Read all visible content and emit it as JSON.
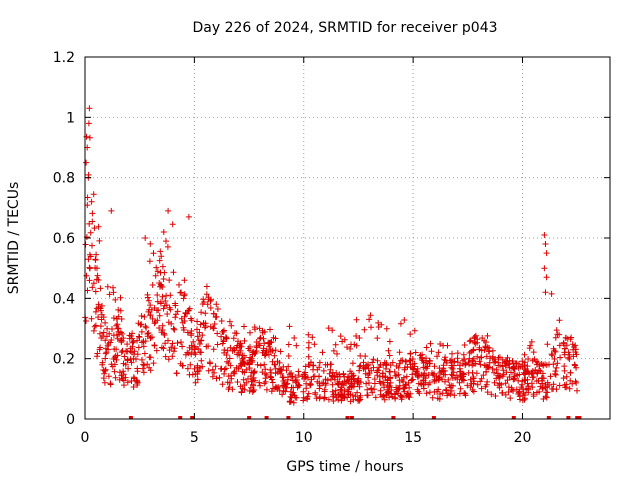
{
  "chart_data": {
    "type": "scatter",
    "title": "Day 226 of 2024, SRMTID for receiver p043",
    "xlabel": "GPS time / hours",
    "ylabel": "SRMTID / TECUs",
    "xlim": [
      0,
      24
    ],
    "ylim": [
      0,
      1.2
    ],
    "x_ticks": [
      0,
      5,
      10,
      15,
      20
    ],
    "x_tick_labels": [
      "0",
      "5",
      "10",
      "15",
      "20"
    ],
    "y_ticks": [
      0,
      0.2,
      0.4,
      0.6,
      0.8,
      1,
      1.2
    ],
    "y_tick_labels": [
      "0",
      "0.2",
      "0.4",
      "0.6",
      "0.8",
      "1",
      "1.2"
    ],
    "grid": true,
    "marker": "+",
    "series_color": "#dd0000",
    "series": [
      {
        "name": "SRMTID",
        "envelope_hours": [
          0,
          0.2,
          0.5,
          1,
          1.5,
          2,
          2.5,
          3,
          3.5,
          4,
          4.5,
          5,
          5.5,
          6,
          6.5,
          7,
          7.5,
          8,
          8.5,
          9,
          9.5,
          10,
          10.5,
          11,
          11.5,
          12,
          12.5,
          13,
          13.5,
          14,
          14.5,
          15,
          15.5,
          16,
          16.5,
          17,
          17.5,
          18,
          18.5,
          19,
          19.5,
          20,
          20.5,
          21,
          21.5,
          22,
          22.5
        ],
        "envelope_typical": [
          0.5,
          0.55,
          0.35,
          0.2,
          0.25,
          0.18,
          0.22,
          0.3,
          0.38,
          0.28,
          0.3,
          0.22,
          0.28,
          0.25,
          0.2,
          0.18,
          0.15,
          0.2,
          0.18,
          0.12,
          0.1,
          0.12,
          0.14,
          0.12,
          0.1,
          0.1,
          0.12,
          0.14,
          0.13,
          0.12,
          0.13,
          0.15,
          0.14,
          0.12,
          0.14,
          0.13,
          0.15,
          0.2,
          0.16,
          0.14,
          0.13,
          0.12,
          0.15,
          0.13,
          0.18,
          0.2,
          0.16
        ],
        "envelope_high": [
          0.9,
          1.03,
          0.7,
          0.45,
          0.45,
          0.3,
          0.32,
          0.6,
          0.55,
          0.69,
          0.62,
          0.67,
          0.45,
          0.4,
          0.35,
          0.3,
          0.32,
          0.32,
          0.3,
          0.28,
          0.35,
          0.3,
          0.3,
          0.37,
          0.3,
          0.28,
          0.35,
          0.4,
          0.32,
          0.33,
          0.36,
          0.3,
          0.25,
          0.25,
          0.25,
          0.25,
          0.27,
          0.32,
          0.28,
          0.25,
          0.22,
          0.2,
          0.32,
          0.62,
          0.35,
          0.35,
          0.22
        ],
        "zero_value_hours": [
          2.1,
          4.35,
          4.9,
          7.5,
          8.3,
          9.3,
          12.0,
          12.2,
          14.1,
          15.95,
          19.6,
          21.2,
          22.1,
          22.5,
          22.6
        ]
      }
    ]
  }
}
